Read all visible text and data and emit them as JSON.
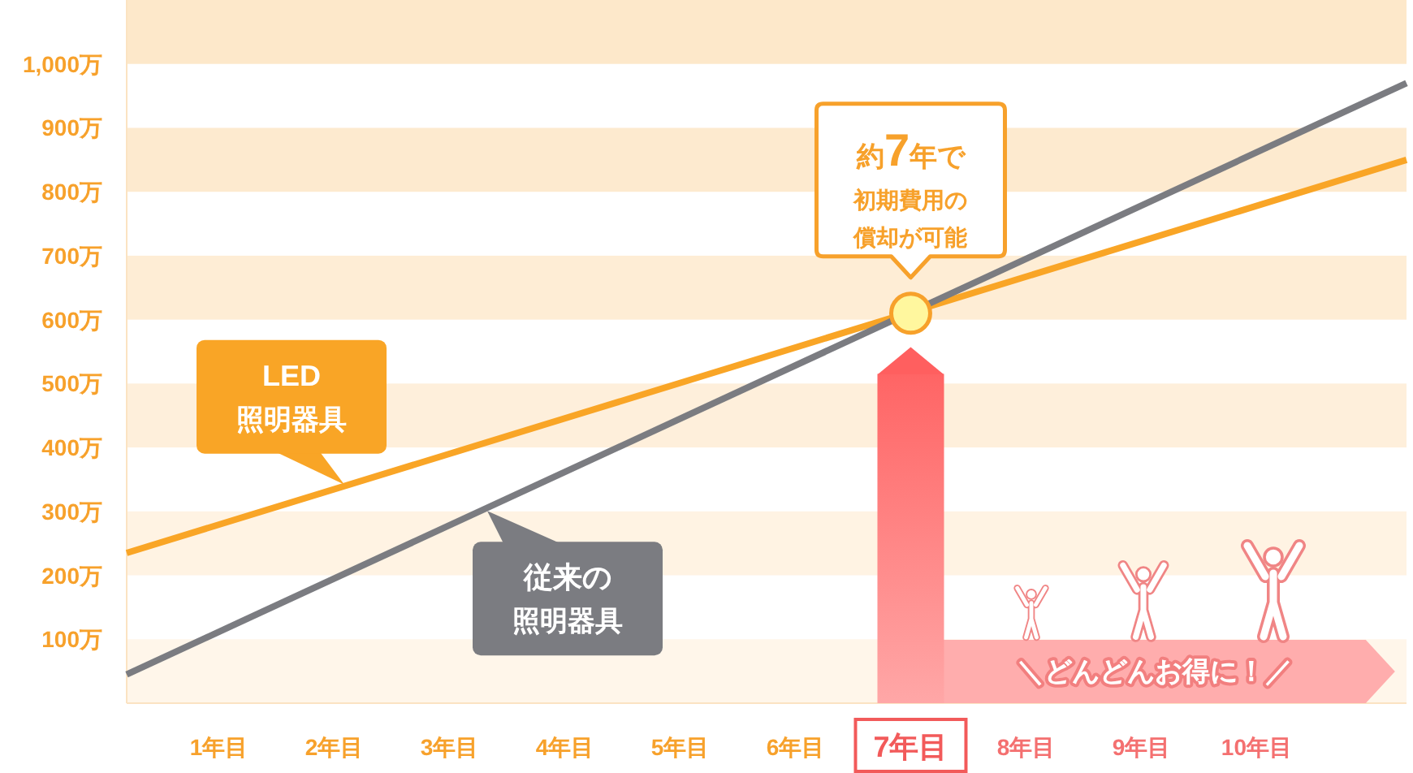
{
  "chart_data": {
    "type": "line",
    "x": [
      0.2,
      11.3
    ],
    "xlim": [
      0.2,
      11.3
    ],
    "xticks": [
      {
        "value": 1,
        "label": "1年目"
      },
      {
        "value": 2,
        "label": "2年目"
      },
      {
        "value": 3,
        "label": "3年目"
      },
      {
        "value": 4,
        "label": "4年目"
      },
      {
        "value": 5,
        "label": "5年目"
      },
      {
        "value": 6,
        "label": "6年目"
      },
      {
        "value": 7,
        "label": "7年目"
      },
      {
        "value": 8,
        "label": "8年目"
      },
      {
        "value": 9,
        "label": "9年目"
      },
      {
        "value": 10,
        "label": "10年目"
      }
    ],
    "ylim": [
      0,
      1100
    ],
    "yticks": [
      {
        "value": 100,
        "label": "100万"
      },
      {
        "value": 200,
        "label": "200万"
      },
      {
        "value": 300,
        "label": "300万"
      },
      {
        "value": 400,
        "label": "400万"
      },
      {
        "value": 500,
        "label": "500万"
      },
      {
        "value": 600,
        "label": "600万"
      },
      {
        "value": 700,
        "label": "700万"
      },
      {
        "value": 800,
        "label": "800万"
      },
      {
        "value": 900,
        "label": "900万"
      },
      {
        "value": 1000,
        "label": "1,000万"
      }
    ],
    "series": [
      {
        "name": "LED照明器具",
        "color": "#f9a526",
        "values": [
          235,
          850
        ]
      },
      {
        "name": "従来の照明器具",
        "color": "#7b7c81",
        "values": [
          45,
          970
        ]
      }
    ],
    "annotations": [
      {
        "text": "約7年で初期費用の償却が可能",
        "x": 7,
        "y": 610
      }
    ],
    "ref_lines": [
      {
        "axis": "x",
        "value": 7,
        "color": "#ff5f5f"
      }
    ],
    "bands": [
      {
        "axis": "y",
        "from": 0,
        "to": 100,
        "color": "#fff6ea"
      },
      {
        "axis": "y",
        "from": 200,
        "to": 300,
        "color": "#fff3e3"
      },
      {
        "axis": "y",
        "from": 400,
        "to": 500,
        "color": "#feefdb"
      },
      {
        "axis": "y",
        "from": 600,
        "to": 700,
        "color": "#feedd5"
      },
      {
        "axis": "y",
        "from": 800,
        "to": 900,
        "color": "#fdeacf"
      },
      {
        "axis": "y",
        "from": 1000,
        "to": 1100,
        "color": "#fde8ca"
      },
      {
        "axis": "x",
        "from": 7,
        "to": 11.2,
        "label": "＼どんどんお得に！／",
        "color": "#ffadad"
      }
    ]
  }
}
